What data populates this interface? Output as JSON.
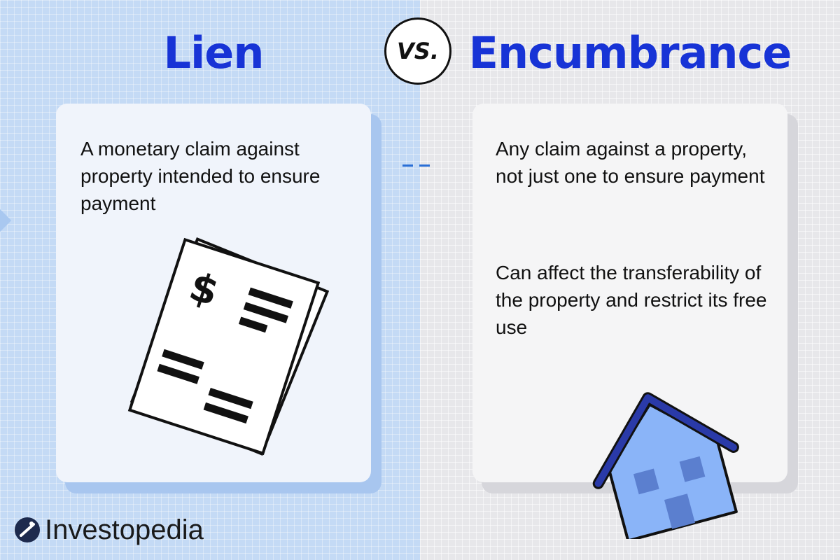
{
  "left": {
    "heading": "Lien",
    "description": "A monetary claim against property intended to ensure payment",
    "illustration_icon": "document-dollar-icon"
  },
  "vs": {
    "label": "VS."
  },
  "right": {
    "heading": "Encumbrance",
    "description_1": "Any claim against a property, not just one to ensure payment",
    "description_2": "Can affect the transferability of the property and restrict its free use",
    "illustration_icon": "house-icon"
  },
  "brand": {
    "name": "Investopedia",
    "logo_icon": "investopedia-logo-icon"
  },
  "colors": {
    "heading": "#1733d6",
    "left_background": "#c4daf5",
    "right_background": "#e7e7ea",
    "house_fill": "#8ab4f8",
    "house_detail": "#5b7fcf",
    "house_roof": "#2a3aa8",
    "dash_accent": "#2a6fd6"
  }
}
